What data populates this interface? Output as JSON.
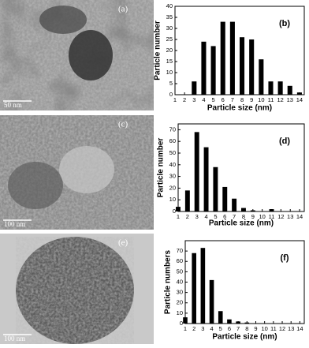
{
  "images": [
    {
      "label": "(a)",
      "scale": "50 nm"
    },
    {
      "label": "(c)",
      "scale": "100 nm"
    },
    {
      "label": "(e)",
      "scale": "100 nm"
    }
  ],
  "chart_data": [
    {
      "type": "bar",
      "annotation": "(b)",
      "x_label": "Particle size (nm)",
      "y_label": "Particle number",
      "color": "#000000",
      "x": [
        3,
        4,
        5,
        6,
        7,
        8,
        9,
        10,
        11,
        12,
        13,
        14
      ],
      "values": [
        6,
        24,
        22,
        33,
        33,
        26,
        25,
        16,
        6,
        6,
        4,
        1
      ],
      "xlim": [
        1,
        14.5
      ],
      "xticks": [
        1,
        2,
        3,
        4,
        5,
        6,
        7,
        8,
        9,
        10,
        11,
        12,
        13,
        14
      ],
      "ylim": [
        0,
        40
      ],
      "yticks": [
        0,
        5,
        10,
        15,
        20,
        25,
        30,
        35,
        40
      ]
    },
    {
      "type": "bar",
      "annotation": "(d)",
      "x_label": "Particle size (nm)",
      "y_label": "Particle number",
      "color": "#000000",
      "x": [
        1,
        2,
        3,
        4,
        5,
        6,
        7,
        8,
        9,
        11
      ],
      "values": [
        4,
        18,
        68,
        55,
        38,
        21,
        11,
        3,
        1,
        2
      ],
      "xlim": [
        1,
        14.5
      ],
      "xticks": [
        1,
        2,
        3,
        4,
        5,
        6,
        7,
        8,
        9,
        10,
        11,
        12,
        13,
        14
      ],
      "ylim": [
        0,
        75
      ],
      "yticks": [
        0,
        10,
        20,
        30,
        40,
        50,
        60,
        70
      ]
    },
    {
      "type": "bar",
      "annotation": "(f)",
      "x_label": "Particle size (nm)",
      "y_label": "Particle numbers",
      "color": "#000000",
      "x": [
        1,
        2,
        3,
        4,
        5,
        6,
        7,
        8
      ],
      "values": [
        6,
        68,
        73,
        42,
        12,
        4,
        2,
        1
      ],
      "xlim": [
        1,
        14.5
      ],
      "xticks": [
        1,
        2,
        3,
        4,
        5,
        6,
        7,
        8,
        9,
        10,
        11,
        12,
        13,
        14
      ],
      "ylim": [
        0,
        80
      ],
      "yticks": [
        0,
        10,
        20,
        30,
        40,
        50,
        60,
        70
      ]
    }
  ]
}
